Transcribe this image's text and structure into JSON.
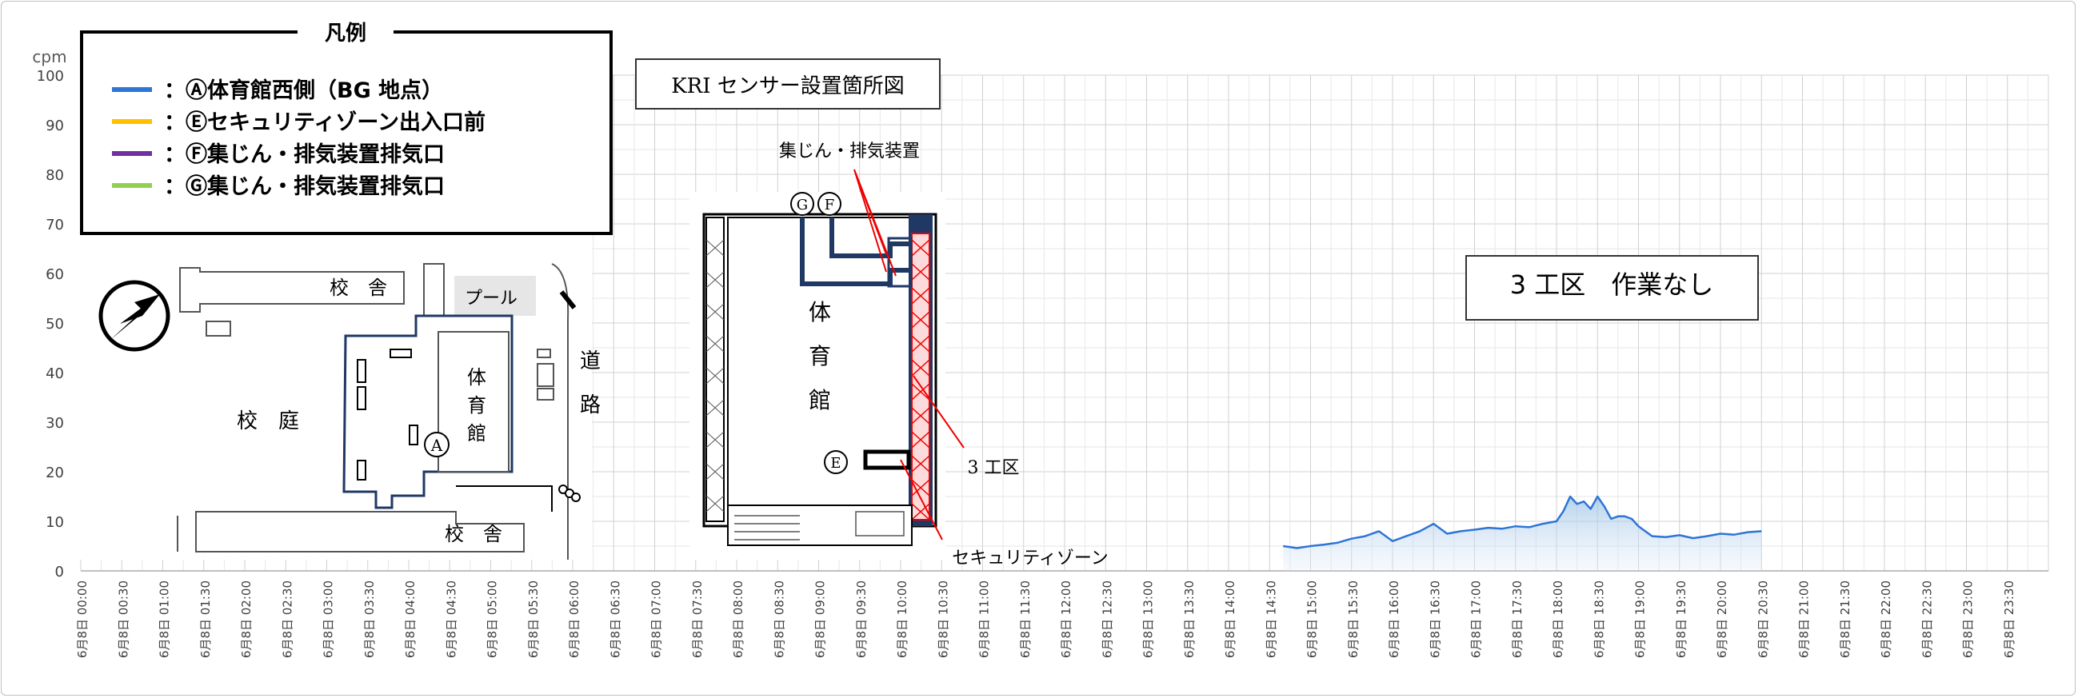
{
  "chart_data": {
    "type": "area",
    "ylabel": "cpm",
    "ylim": [
      0,
      100
    ],
    "yticks": [
      0,
      10,
      20,
      30,
      40,
      50,
      60,
      70,
      80,
      90,
      100
    ],
    "grid": true,
    "xlabels": [
      "6月8日 00:00",
      "6月8日 00:30",
      "6月8日 01:00",
      "6月8日 01:30",
      "6月8日 02:00",
      "6月8日 02:30",
      "6月8日 03:00",
      "6月8日 03:30",
      "6月8日 04:00",
      "6月8日 04:30",
      "6月8日 05:00",
      "6月8日 05:30",
      "6月8日 06:00",
      "6月8日 06:30",
      "6月8日 07:00",
      "6月8日 07:30",
      "6月8日 08:00",
      "6月8日 08:30",
      "6月8日 09:00",
      "6月8日 09:30",
      "6月8日 10:00",
      "6月8日 10:30",
      "6月8日 11:00",
      "6月8日 11:30",
      "6月8日 12:00",
      "6月8日 12:30",
      "6月8日 13:00",
      "6月8日 13:30",
      "6月8日 14:00",
      "6月8日 14:30",
      "6月8日 15:00",
      "6月8日 15:30",
      "6月8日 16:00",
      "6月8日 16:30",
      "6月8日 17:00",
      "6月8日 17:30",
      "6月8日 18:00",
      "6月8日 18:30",
      "6月8日 19:00",
      "6月8日 19:30",
      "6月8日 20:00",
      "6月8日 20:30",
      "6月8日 21:00",
      "6月8日 21:30",
      "6月8日 22:00",
      "6月8日 22:30",
      "6月8日 23:00",
      "6月8日 23:30"
    ],
    "series": [
      {
        "name": "Ⓐ体育館西側（BG地点）",
        "color": "#2e75d6",
        "x": [
          "14:40",
          "14:50",
          "15:00",
          "15:10",
          "15:20",
          "15:30",
          "15:40",
          "15:50",
          "16:00",
          "16:10",
          "16:20",
          "16:30",
          "16:40",
          "16:50",
          "17:00",
          "17:10",
          "17:20",
          "17:30",
          "17:40",
          "17:50",
          "18:00",
          "18:05",
          "18:10",
          "18:15",
          "18:20",
          "18:25",
          "18:30",
          "18:35",
          "18:40",
          "18:45",
          "18:50",
          "18:55",
          "19:00",
          "19:10",
          "19:20",
          "19:30",
          "19:40",
          "19:50",
          "20:00",
          "20:10",
          "20:20",
          "20:30"
        ],
        "values": [
          5,
          4.6,
          5,
          5.3,
          5.7,
          6.5,
          7,
          8,
          6,
          7,
          8,
          9.5,
          7.5,
          8,
          8.3,
          8.7,
          8.5,
          9,
          8.8,
          9.5,
          10,
          12,
          15,
          13.5,
          14,
          12.5,
          15,
          13,
          10.5,
          11,
          11,
          10.5,
          9,
          7,
          6.8,
          7.2,
          6.6,
          7,
          7.5,
          7.3,
          7.8,
          8
        ]
      }
    ],
    "legend": {
      "title": "凡例",
      "placement": "top-left",
      "items": [
        {
          "label": "：Ⓐ体育館西側（BG 地点）",
          "color": "#2e75d6"
        },
        {
          "label": "：Ⓔセキュリティゾーン出入口前",
          "color": "#ffc000"
        },
        {
          "label": "：Ⓕ集じん・排気装置排気口",
          "color": "#7030a0"
        },
        {
          "label": "：Ⓖ集じん・排気装置排気口",
          "color": "#92d050"
        }
      ]
    },
    "annotation": "3 工区　作業なし"
  },
  "map": {
    "title": "KRI センサー設置箇所図",
    "labels": {
      "school1": "校　舎",
      "school2": "校　舎",
      "pool": "プール",
      "gym_small": [
        "体",
        "育",
        "館"
      ],
      "courtyard": "校　庭",
      "road": [
        "道",
        "路"
      ],
      "gym_big": [
        "体",
        "育",
        "館"
      ],
      "collector": "集じん・排気装置",
      "zone3": "3 工区",
      "security": "セキュリティゾーン",
      "mark_a": "A",
      "mark_e": "E",
      "mark_f": "F",
      "mark_g": "G"
    }
  }
}
